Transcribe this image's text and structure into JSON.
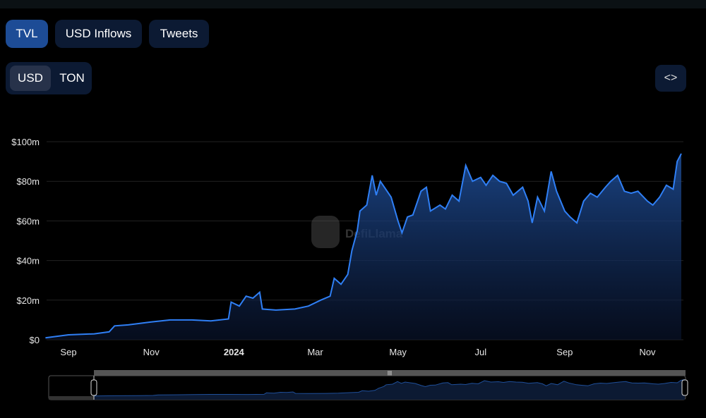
{
  "tabs": [
    {
      "label": "TVL",
      "active": true
    },
    {
      "label": "USD Inflows",
      "active": false
    },
    {
      "label": "Tweets",
      "active": false
    }
  ],
  "currency": {
    "options": [
      "USD",
      "TON"
    ],
    "selected": "USD"
  },
  "embed_icon": "code-brackets-icon",
  "watermark": "DefiLlama",
  "colors": {
    "line": "#2f7ff5",
    "active_tab": "#1d4c96",
    "button_bg": "#0c1a33"
  },
  "chart_data": {
    "type": "area",
    "title": "",
    "xlabel": "",
    "ylabel": "",
    "ylim": [
      0,
      100
    ],
    "y_ticks": [
      "$0",
      "$20m",
      "$40m",
      "$60m",
      "$80m",
      "$100m"
    ],
    "x_ticks": [
      {
        "label": "Sep",
        "date": "2023-09-01"
      },
      {
        "label": "Nov",
        "date": "2023-11-01"
      },
      {
        "label": "2024",
        "date": "2024-01-01"
      },
      {
        "label": "Mar",
        "date": "2024-03-01"
      },
      {
        "label": "May",
        "date": "2024-05-01"
      },
      {
        "label": "Jul",
        "date": "2024-07-01"
      },
      {
        "label": "Sep",
        "date": "2024-09-01"
      },
      {
        "label": "Nov",
        "date": "2024-11-01"
      }
    ],
    "grid": true,
    "unit": "USD millions",
    "points": [
      [
        "2023-08-15",
        1
      ],
      [
        "2023-09-01",
        2.5
      ],
      [
        "2023-09-20",
        3
      ],
      [
        "2023-10-01",
        4
      ],
      [
        "2023-10-05",
        7
      ],
      [
        "2023-10-15",
        7.5
      ],
      [
        "2023-11-01",
        9
      ],
      [
        "2023-11-15",
        10
      ],
      [
        "2023-12-01",
        10
      ],
      [
        "2023-12-15",
        9.5
      ],
      [
        "2023-12-28",
        10.5
      ],
      [
        "2023-12-30",
        19
      ],
      [
        "2024-01-05",
        17
      ],
      [
        "2024-01-10",
        22
      ],
      [
        "2024-01-15",
        21
      ],
      [
        "2024-01-20",
        24
      ],
      [
        "2024-01-22",
        15.5
      ],
      [
        "2024-02-01",
        15
      ],
      [
        "2024-02-15",
        15.5
      ],
      [
        "2024-02-25",
        17
      ],
      [
        "2024-03-05",
        20
      ],
      [
        "2024-03-12",
        22
      ],
      [
        "2024-03-15",
        31
      ],
      [
        "2024-03-20",
        28
      ],
      [
        "2024-03-25",
        33
      ],
      [
        "2024-03-28",
        45
      ],
      [
        "2024-04-01",
        55
      ],
      [
        "2024-04-03",
        65
      ],
      [
        "2024-04-08",
        68
      ],
      [
        "2024-04-12",
        83
      ],
      [
        "2024-04-15",
        73
      ],
      [
        "2024-04-18",
        80
      ],
      [
        "2024-04-22",
        76
      ],
      [
        "2024-04-26",
        72
      ],
      [
        "2024-05-01",
        60
      ],
      [
        "2024-05-04",
        54
      ],
      [
        "2024-05-08",
        62
      ],
      [
        "2024-05-12",
        63
      ],
      [
        "2024-05-18",
        75
      ],
      [
        "2024-05-22",
        77
      ],
      [
        "2024-05-25",
        65
      ],
      [
        "2024-06-01",
        68
      ],
      [
        "2024-06-05",
        66
      ],
      [
        "2024-06-10",
        73
      ],
      [
        "2024-06-15",
        70
      ],
      [
        "2024-06-20",
        88
      ],
      [
        "2024-06-25",
        80
      ],
      [
        "2024-07-01",
        82
      ],
      [
        "2024-07-05",
        78
      ],
      [
        "2024-07-10",
        83
      ],
      [
        "2024-07-15",
        80
      ],
      [
        "2024-07-20",
        79
      ],
      [
        "2024-07-25",
        73
      ],
      [
        "2024-08-01",
        77
      ],
      [
        "2024-08-05",
        70
      ],
      [
        "2024-08-08",
        59
      ],
      [
        "2024-08-12",
        72
      ],
      [
        "2024-08-17",
        65
      ],
      [
        "2024-08-22",
        85
      ],
      [
        "2024-08-26",
        75
      ],
      [
        "2024-09-01",
        65
      ],
      [
        "2024-09-05",
        62
      ],
      [
        "2024-09-10",
        59
      ],
      [
        "2024-09-15",
        70
      ],
      [
        "2024-09-20",
        74
      ],
      [
        "2024-09-25",
        72
      ],
      [
        "2024-10-01",
        77
      ],
      [
        "2024-10-05",
        80
      ],
      [
        "2024-10-10",
        83
      ],
      [
        "2024-10-15",
        75
      ],
      [
        "2024-10-20",
        74
      ],
      [
        "2024-10-25",
        75
      ],
      [
        "2024-11-01",
        70
      ],
      [
        "2024-11-05",
        68
      ],
      [
        "2024-11-10",
        72
      ],
      [
        "2024-11-15",
        78
      ],
      [
        "2024-11-20",
        76
      ],
      [
        "2024-11-23",
        90
      ],
      [
        "2024-11-26",
        94
      ]
    ]
  }
}
